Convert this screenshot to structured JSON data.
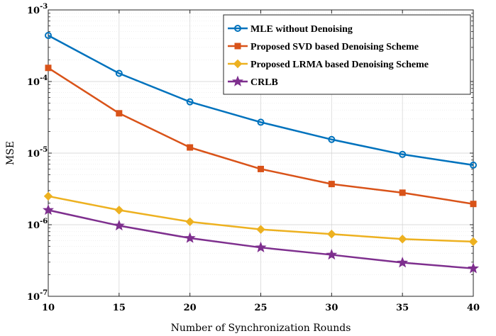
{
  "chart_data": {
    "type": "line",
    "xlabel": "Number of Synchronization Rounds",
    "ylabel": "MSE",
    "x": [
      10,
      15,
      20,
      25,
      30,
      35,
      40
    ],
    "xlim": [
      10,
      40
    ],
    "ylim": [
      1e-07,
      0.001
    ],
    "yscale": "log",
    "grid": true,
    "legend_position": "top-right",
    "x_tick_labels": [
      "10",
      "15",
      "20",
      "25",
      "30",
      "35",
      "40"
    ],
    "y_ticks": [
      {
        "base": "10",
        "exp": "-7"
      },
      {
        "base": "10",
        "exp": "-6"
      },
      {
        "base": "10",
        "exp": "-5"
      },
      {
        "base": "10",
        "exp": "-4"
      },
      {
        "base": "10",
        "exp": "-3"
      }
    ],
    "series": [
      {
        "name": "MLE without Denoising",
        "color": "#0072BD",
        "marker": "circle",
        "values": [
          0.00044,
          0.00013,
          5.2e-05,
          2.7e-05,
          1.55e-05,
          9.6e-06,
          6.8e-06
        ]
      },
      {
        "name": "Proposed SVD based Denoising Scheme",
        "color": "#D95319",
        "marker": "square",
        "values": [
          0.000155,
          3.6e-05,
          1.2e-05,
          6e-06,
          3.7e-06,
          2.8e-06,
          1.95e-06
        ]
      },
      {
        "name": "Proposed LRMA based Denoising Scheme",
        "color": "#EDB120",
        "marker": "diamond",
        "values": [
          2.5e-06,
          1.6e-06,
          1.1e-06,
          8.6e-07,
          7.4e-07,
          6.3e-07,
          5.8e-07
        ]
      },
      {
        "name": "CRLB",
        "color": "#7E2F8E",
        "marker": "star",
        "values": [
          1.6e-06,
          9.7e-07,
          6.5e-07,
          4.8e-07,
          3.8e-07,
          2.95e-07,
          2.45e-07
        ]
      }
    ]
  }
}
